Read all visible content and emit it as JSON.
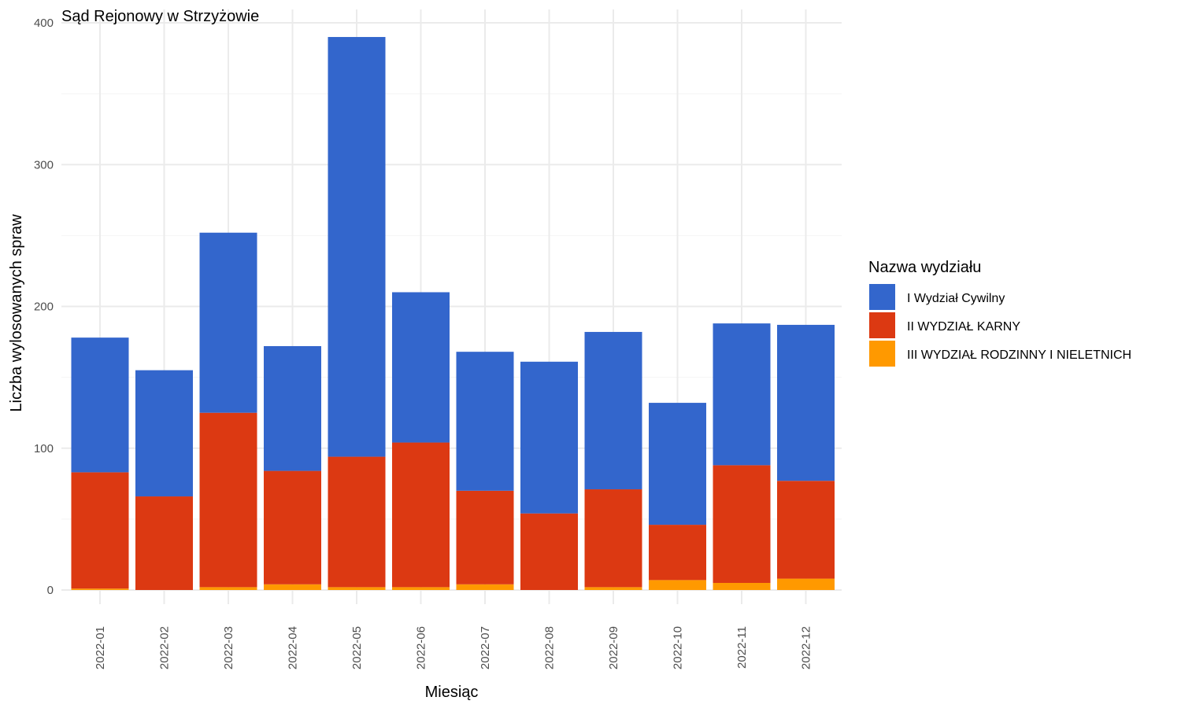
{
  "chart_data": {
    "type": "bar",
    "stacked": true,
    "title": "Sąd Rejonowy w Strzyżowie",
    "xlabel": "Miesiąc",
    "ylabel": "Liczba wylosowanych spraw",
    "ylim": [
      0,
      400
    ],
    "yticks": [
      0,
      100,
      200,
      300,
      400
    ],
    "grid": true,
    "legend_position": "right",
    "legend_title": "Nazwa wydziału",
    "categories": [
      "2022-01",
      "2022-02",
      "2022-03",
      "2022-04",
      "2022-05",
      "2022-06",
      "2022-07",
      "2022-08",
      "2022-09",
      "2022-10",
      "2022-11",
      "2022-12"
    ],
    "series": [
      {
        "name": "III WYDZIAŁ RODZINNY I NIELETNICH",
        "color": "#FF9900",
        "values": [
          1,
          0,
          2,
          4,
          2,
          2,
          4,
          0,
          2,
          7,
          5,
          8
        ]
      },
      {
        "name": "II WYDZIAŁ KARNY",
        "color": "#DC3912",
        "values": [
          82,
          66,
          123,
          80,
          92,
          102,
          66,
          54,
          69,
          39,
          83,
          69
        ]
      },
      {
        "name": "I Wydział Cywilny",
        "color": "#3366CC",
        "values": [
          95,
          89,
          127,
          88,
          296,
          106,
          98,
          107,
          111,
          86,
          100,
          110
        ]
      }
    ],
    "legend_order": [
      "I Wydział Cywilny",
      "II WYDZIAŁ KARNY",
      "III WYDZIAŁ RODZINNY I NIELETNICH"
    ]
  }
}
